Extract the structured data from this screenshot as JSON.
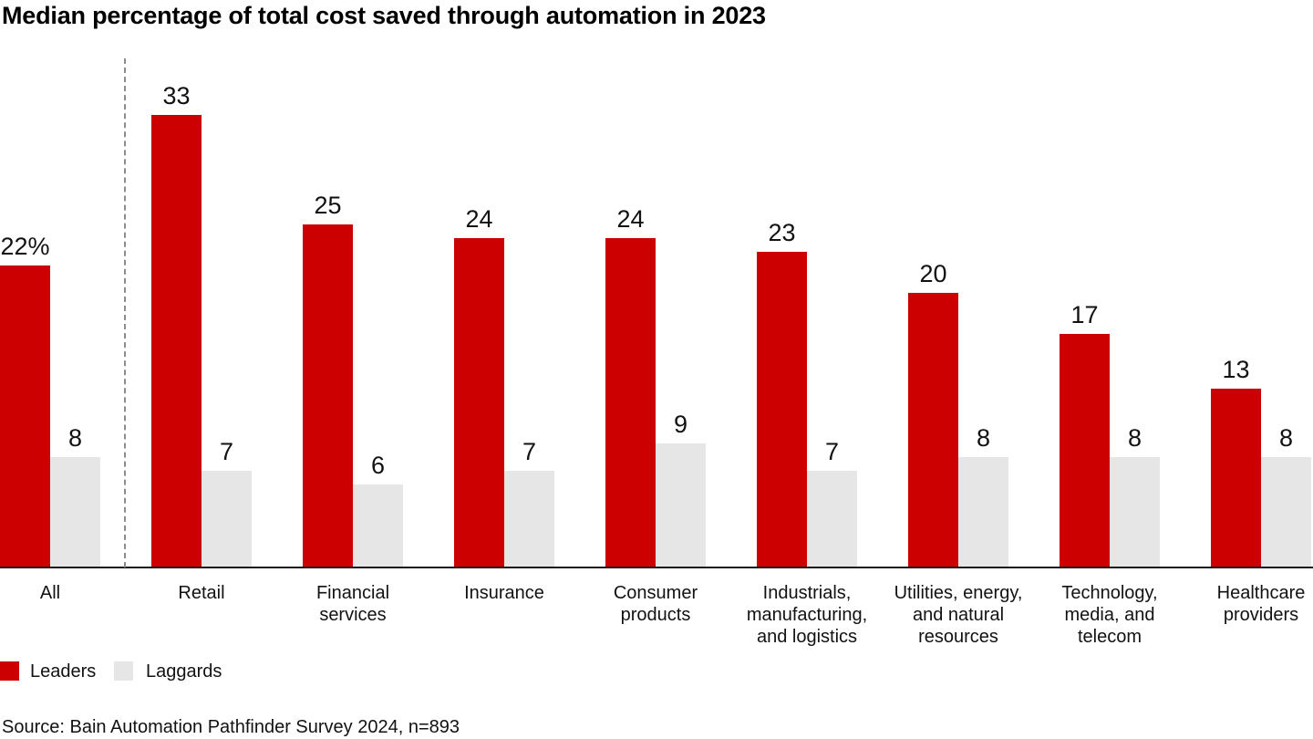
{
  "title": "Median percentage of total cost saved through automation in 2023",
  "source": "Source: Bain Automation Pathfinder Survey 2024, n=893",
  "legend": [
    {
      "label": "Leaders",
      "color": "#cc0000"
    },
    {
      "label": "Laggards",
      "color": "#e6e6e6"
    }
  ],
  "colors": {
    "leaders": "#cc0000",
    "laggards": "#e6e6e6",
    "axis": "#1a1a1a",
    "separator": "#8c8c8c"
  },
  "chart_data": {
    "type": "bar",
    "title": "Median percentage of total cost saved through automation in 2023",
    "unit": "percent of total cost saved",
    "categories": [
      "All",
      "Retail",
      "Financial\nservices",
      "Insurance",
      "Consumer\nproducts",
      "Industrials,\nmanufacturing,\nand logistics",
      "Utilities, energy,\nand natural\nresources",
      "Technology,\nmedia, and\ntelecom",
      "Healthcare\nproviders"
    ],
    "series": [
      {
        "name": "Leaders",
        "color": "#cc0000",
        "values": [
          22,
          33,
          25,
          24,
          24,
          23,
          20,
          17,
          13
        ],
        "display_labels": [
          "22%",
          "33",
          "25",
          "24",
          "24",
          "23",
          "20",
          "17",
          "13"
        ]
      },
      {
        "name": "Laggards",
        "color": "#e6e6e6",
        "values": [
          8,
          7,
          6,
          7,
          9,
          7,
          8,
          8,
          8
        ],
        "display_labels": [
          "8",
          "7",
          "6",
          "7",
          "9",
          "7",
          "8",
          "8",
          "8"
        ]
      }
    ],
    "ylim": [
      0,
      35
    ],
    "grid": false,
    "value_labels": true,
    "legend_position": "bottom-left",
    "separator_after_category": "All"
  }
}
